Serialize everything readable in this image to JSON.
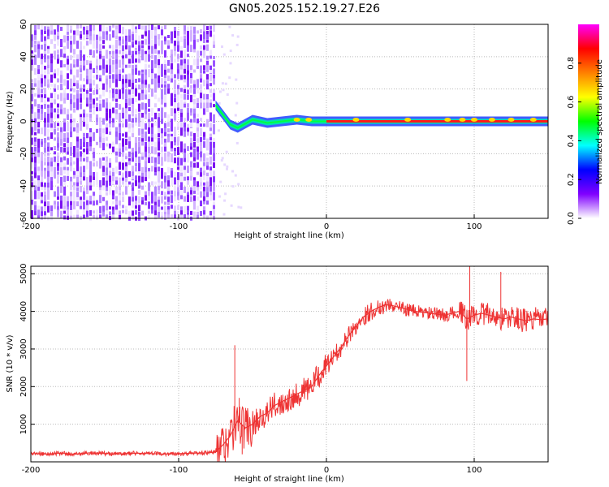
{
  "title": "GN05.2025.152.19.27.E26",
  "chart_data": [
    {
      "type": "heatmap",
      "xlabel": "Height of straight line (km)",
      "ylabel": "Frequency (Hz)",
      "xlim": [
        -200,
        150
      ],
      "ylim": [
        -60,
        60
      ],
      "xticks": [
        -200,
        -100,
        0,
        100
      ],
      "yticks": [
        -60,
        -40,
        -20,
        0,
        20,
        40,
        60
      ],
      "grid": true,
      "noise_region_x": [
        -200,
        -75
      ],
      "signal_line_x": [
        -75,
        150
      ],
      "signal_frequency": 0,
      "signal_center_track": [
        {
          "x": -75,
          "y": 10
        },
        {
          "x": -70,
          "y": 4
        },
        {
          "x": -65,
          "y": -2
        },
        {
          "x": -60,
          "y": -4
        },
        {
          "x": -50,
          "y": 1
        },
        {
          "x": -40,
          "y": -1
        },
        {
          "x": -30,
          "y": 0
        },
        {
          "x": -20,
          "y": 1
        },
        {
          "x": -10,
          "y": 0
        },
        {
          "x": 0,
          "y": 0
        },
        {
          "x": 150,
          "y": 0
        }
      ],
      "colorbar": {
        "label": "Normalized spectral amplitude",
        "range": [
          0,
          1
        ],
        "ticks": [
          "0.0",
          "0.2",
          "0.4",
          "0.6",
          "0.8"
        ],
        "colors": [
          "#ffffff",
          "#8000ff",
          "#0000ff",
          "#00ffff",
          "#00ff00",
          "#ffff00",
          "#ff8000",
          "#ff0000",
          "#ff00ff"
        ]
      }
    },
    {
      "type": "line",
      "xlabel": "Height of straight line (km)",
      "ylabel": "SNR (10 * v/v)",
      "xlim": [
        -200,
        150
      ],
      "ylim": [
        0,
        5200
      ],
      "xticks": [
        -200,
        -100,
        0,
        100
      ],
      "yticks": [
        1000,
        2000,
        3000,
        4000,
        5000
      ],
      "grid": true,
      "color": "#ee3333",
      "x": [
        -200,
        -190,
        -180,
        -170,
        -160,
        -150,
        -140,
        -130,
        -120,
        -110,
        -100,
        -90,
        -80,
        -75,
        -70,
        -65,
        -60,
        -55,
        -50,
        -45,
        -40,
        -35,
        -30,
        -25,
        -20,
        -15,
        -10,
        -5,
        0,
        5,
        10,
        15,
        20,
        25,
        30,
        35,
        40,
        45,
        50,
        55,
        60,
        65,
        70,
        75,
        80,
        85,
        90,
        95,
        100,
        105,
        110,
        115,
        120,
        125,
        130,
        135,
        140,
        145,
        150
      ],
      "y": [
        220,
        210,
        230,
        200,
        240,
        220,
        210,
        230,
        220,
        210,
        220,
        230,
        240,
        260,
        450,
        700,
        1100,
        900,
        1000,
        1200,
        1300,
        1500,
        1600,
        1700,
        1800,
        1900,
        2000,
        2300,
        2550,
        2800,
        3050,
        3350,
        3600,
        3850,
        4000,
        4100,
        4180,
        4150,
        4100,
        4050,
        4000,
        3980,
        3950,
        3920,
        3900,
        3950,
        4000,
        3800,
        3900,
        3950,
        3900,
        3850,
        3800,
        3850,
        3800,
        3750,
        3800,
        3780,
        3800
      ],
      "spikes": [
        {
          "x": -62,
          "y": 3100
        },
        {
          "x": -59,
          "y": 1700
        },
        {
          "x": -57,
          "y": 200
        },
        {
          "x": 95,
          "y": 2150
        },
        {
          "x": 97,
          "y": 5200
        },
        {
          "x": 118,
          "y": 5050
        }
      ]
    }
  ]
}
